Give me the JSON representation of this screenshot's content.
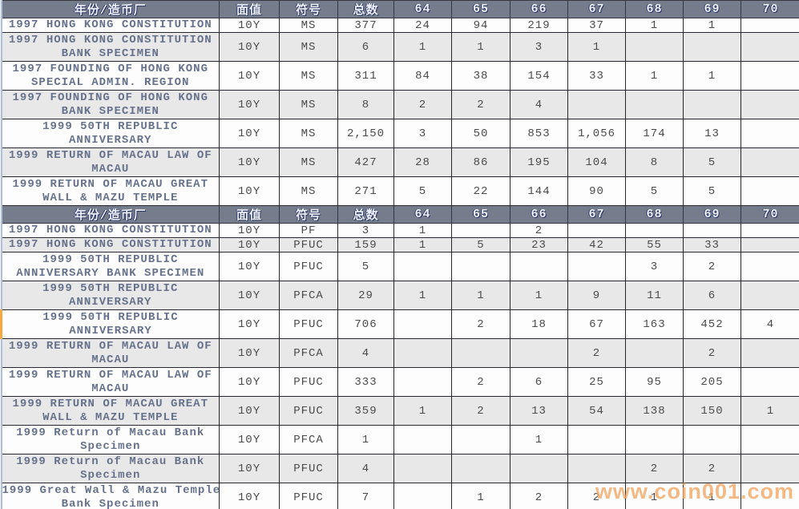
{
  "chart_data": {
    "type": "table",
    "columns": {
      "name": "年份/造币厂",
      "face": "面值",
      "symbol": "符号",
      "total": "总数",
      "grades": [
        "64",
        "65",
        "66",
        "67",
        "68",
        "69",
        "70"
      ]
    },
    "sections": [
      {
        "rows": [
          {
            "name_lines": [
              "1997 HONG KONG CONSTITUTION"
            ],
            "face": "10Y",
            "symbol": "MS",
            "total": "377",
            "grades": [
              "24",
              "94",
              "219",
              "37",
              "1",
              "1",
              ""
            ]
          },
          {
            "name_lines": [
              "1997 HONG KONG CONSTITUTION",
              "BANK SPECIMEN"
            ],
            "face": "10Y",
            "symbol": "MS",
            "total": "6",
            "grades": [
              "1",
              "1",
              "3",
              "1",
              "",
              "",
              ""
            ]
          },
          {
            "name_lines": [
              "1997 FOUNDING OF HONG KONG",
              "SPECIAL ADMIN. REGION"
            ],
            "face": "10Y",
            "symbol": "MS",
            "total": "311",
            "grades": [
              "84",
              "38",
              "154",
              "33",
              "1",
              "1",
              ""
            ]
          },
          {
            "name_lines": [
              "1997 FOUNDING OF HONG KONG",
              "BANK SPECIMEN"
            ],
            "face": "10Y",
            "symbol": "MS",
            "total": "8",
            "grades": [
              "2",
              "2",
              "4",
              "",
              "",
              "",
              ""
            ]
          },
          {
            "name_lines": [
              "1999 50TH REPUBLIC",
              "ANNIVERSARY"
            ],
            "face": "10Y",
            "symbol": "MS",
            "total": "2,150",
            "grades": [
              "3",
              "50",
              "853",
              "1,056",
              "174",
              "13",
              ""
            ]
          },
          {
            "name_lines": [
              "1999 RETURN OF MACAU LAW OF",
              "MACAU"
            ],
            "face": "10Y",
            "symbol": "MS",
            "total": "427",
            "grades": [
              "28",
              "86",
              "195",
              "104",
              "8",
              "5",
              ""
            ]
          },
          {
            "name_lines": [
              "1999 RETURN OF MACAU GREAT",
              "WALL & MAZU TEMPLE"
            ],
            "face": "10Y",
            "symbol": "MS",
            "total": "271",
            "grades": [
              "5",
              "22",
              "144",
              "90",
              "5",
              "5",
              ""
            ]
          }
        ]
      },
      {
        "rows": [
          {
            "name_lines": [
              "1997 HONG KONG CONSTITUTION"
            ],
            "face": "10Y",
            "symbol": "PF",
            "total": "3",
            "grades": [
              "1",
              "",
              "2",
              "",
              "",
              "",
              ""
            ]
          },
          {
            "name_lines": [
              "1997 HONG KONG CONSTITUTION"
            ],
            "face": "10Y",
            "symbol": "PFUC",
            "total": "159",
            "grades": [
              "1",
              "5",
              "23",
              "42",
              "55",
              "33",
              ""
            ]
          },
          {
            "name_lines": [
              "1999 50TH REPUBLIC",
              "ANNIVERSARY BANK SPECIMEN"
            ],
            "face": "10Y",
            "symbol": "PFUC",
            "total": "5",
            "grades": [
              "",
              "",
              "",
              "",
              "3",
              "2",
              ""
            ]
          },
          {
            "name_lines": [
              "1999 50TH REPUBLIC",
              "ANNIVERSARY"
            ],
            "face": "10Y",
            "symbol": "PFCA",
            "total": "29",
            "grades": [
              "1",
              "1",
              "1",
              "9",
              "11",
              "6",
              ""
            ]
          },
          {
            "name_lines": [
              "1999 50TH REPUBLIC",
              "ANNIVERSARY"
            ],
            "face": "10Y",
            "symbol": "PFUC",
            "total": "706",
            "grades": [
              "",
              "2",
              "18",
              "67",
              "163",
              "452",
              "4"
            ],
            "marked": true
          },
          {
            "name_lines": [
              "1999 RETURN OF MACAU LAW OF",
              "MACAU"
            ],
            "face": "10Y",
            "symbol": "PFCA",
            "total": "4",
            "grades": [
              "",
              "",
              "",
              "2",
              "",
              "2",
              ""
            ]
          },
          {
            "name_lines": [
              "1999 RETURN OF MACAU LAW OF",
              "MACAU"
            ],
            "face": "10Y",
            "symbol": "PFUC",
            "total": "333",
            "grades": [
              "",
              "2",
              "6",
              "25",
              "95",
              "205",
              ""
            ]
          },
          {
            "name_lines": [
              "1999 RETURN OF MACAU GREAT",
              "WALL & MAZU TEMPLE"
            ],
            "face": "10Y",
            "symbol": "PFUC",
            "total": "359",
            "grades": [
              "1",
              "2",
              "13",
              "54",
              "138",
              "150",
              "1"
            ]
          },
          {
            "name_lines": [
              "1999 Return of Macau Bank",
              "Specimen"
            ],
            "face": "10Y",
            "symbol": "PFCA",
            "total": "1",
            "grades": [
              "",
              "",
              "1",
              "",
              "",
              "",
              ""
            ]
          },
          {
            "name_lines": [
              "1999 Return of Macau Bank",
              "Specimen"
            ],
            "face": "10Y",
            "symbol": "PFUC",
            "total": "4",
            "grades": [
              "",
              "",
              "",
              "",
              "2",
              "2",
              ""
            ]
          },
          {
            "name_lines": [
              "1999 Great Wall & Mazu Temple",
              "Bank Specimen"
            ],
            "face": "10Y",
            "symbol": "PFUC",
            "total": "7",
            "grades": [
              "",
              "1",
              "2",
              "2",
              "1",
              "1",
              ""
            ]
          }
        ]
      }
    ]
  },
  "watermark": "www.coin001.com",
  "colors": {
    "header_bg": "#757c8c",
    "header_text": "#eef1f7",
    "header_shadow": "#2b3666",
    "row_white": "#fdfdfd",
    "row_alt": "#e8e8e8",
    "name_text": "#66718b",
    "value_text": "#4b4b4b",
    "border": "#26282e",
    "outer_left": "#aebfdd",
    "mark": "#f6a841",
    "watermark_color": "#f2a562"
  }
}
